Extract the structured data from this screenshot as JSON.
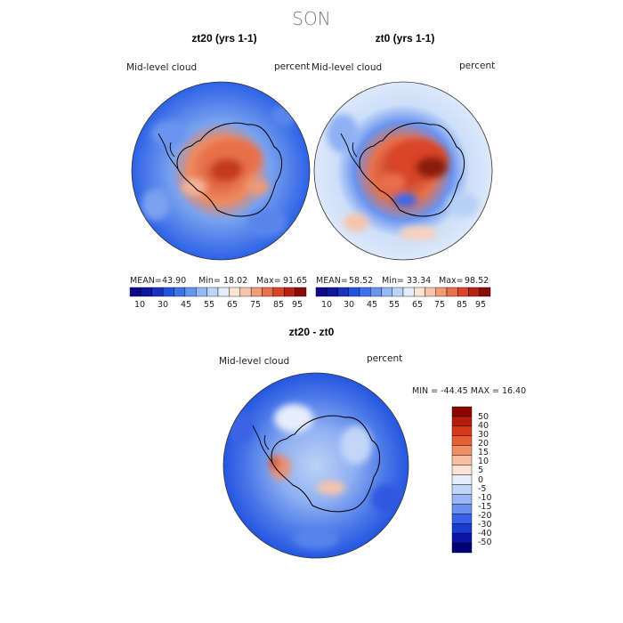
{
  "figure": {
    "season": "SON"
  },
  "colors": {
    "ocean_blue": "#2f62e6",
    "coast": "#000000",
    "scale_10": [
      "#0a0a8a",
      "#10189e",
      "#1733c0",
      "#2155e0",
      "#3b74ea",
      "#6596f0",
      "#93b8f4",
      "#bcd4f8",
      "#e2ecfb",
      "#fbe4d6",
      "#f6c4aa",
      "#f09a77",
      "#e8704a",
      "#d94527",
      "#b82414",
      "#8a0d06"
    ],
    "scale_diff": [
      "#00007a",
      "#0a14a8",
      "#1a3ad0",
      "#3862e6",
      "#6a90ee",
      "#9ab6f4",
      "#c2d6f8",
      "#e6eefb",
      "#fbe2d4",
      "#f6bea2",
      "#f08e6a",
      "#e65e34",
      "#d63a1a",
      "#b61c0c",
      "#8a0800"
    ]
  },
  "maps": [
    {
      "title": "zt20 (yrs 1-1)",
      "variable": "Mid-level cloud",
      "units": "percent",
      "stats": {
        "mean_label": "MEAN=",
        "mean": "43.90",
        "min_label": "Min=",
        "min": "18.02",
        "max_label": "Max=",
        "max": "91.65"
      },
      "colorbar_ticks": [
        "10",
        "30",
        "45",
        "55",
        "65",
        "75",
        "85",
        "95"
      ]
    },
    {
      "title": "zt0 (yrs 1-1)",
      "variable": "Mid-level cloud",
      "units": "percent",
      "stats": {
        "mean_label": "MEAN=",
        "mean": "58.52",
        "min_label": "Min=",
        "min": "33.34",
        "max_label": "Max=",
        "max": "98.52"
      },
      "colorbar_ticks": [
        "10",
        "30",
        "45",
        "55",
        "65",
        "75",
        "85",
        "95"
      ]
    }
  ],
  "diff": {
    "title": "zt20 - zt0",
    "variable": "Mid-level cloud",
    "units": "percent",
    "minmax_text": "MIN = -44.45 MAX =  16.40",
    "colorbar_ticks": [
      "50",
      "40",
      "30",
      "20",
      "15",
      "10",
      "5",
      "0",
      "-5",
      "-10",
      "-15",
      "-20",
      "-30",
      "-40",
      "-50"
    ]
  }
}
